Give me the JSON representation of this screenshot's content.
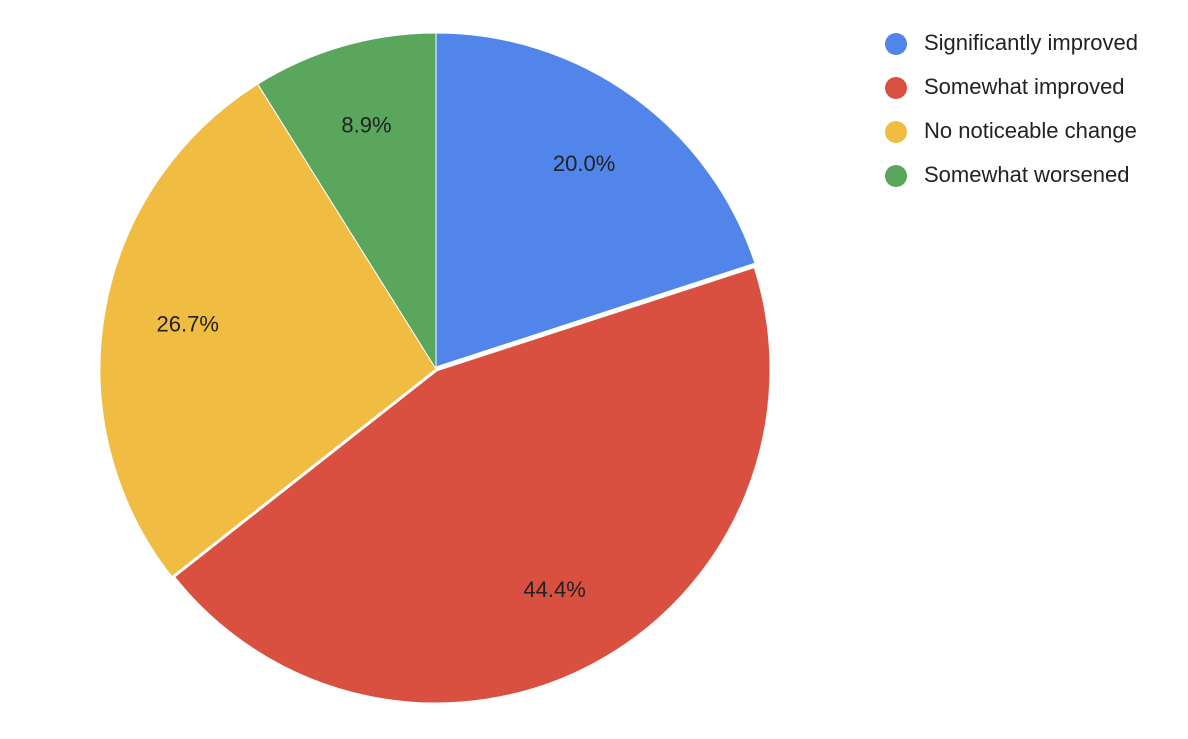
{
  "chart_data": {
    "type": "pie",
    "categories": [
      "Significantly improved",
      "Somewhat improved",
      "No noticeable change",
      "Somewhat worsened"
    ],
    "values": [
      20.0,
      44.4,
      26.7,
      8.9
    ],
    "value_labels": [
      "20.0%",
      "44.4%",
      "26.7%",
      "8.9%"
    ],
    "colors": [
      "#5185ea",
      "#d95040",
      "#f1bc42",
      "#59a65c"
    ],
    "legend": "right"
  }
}
